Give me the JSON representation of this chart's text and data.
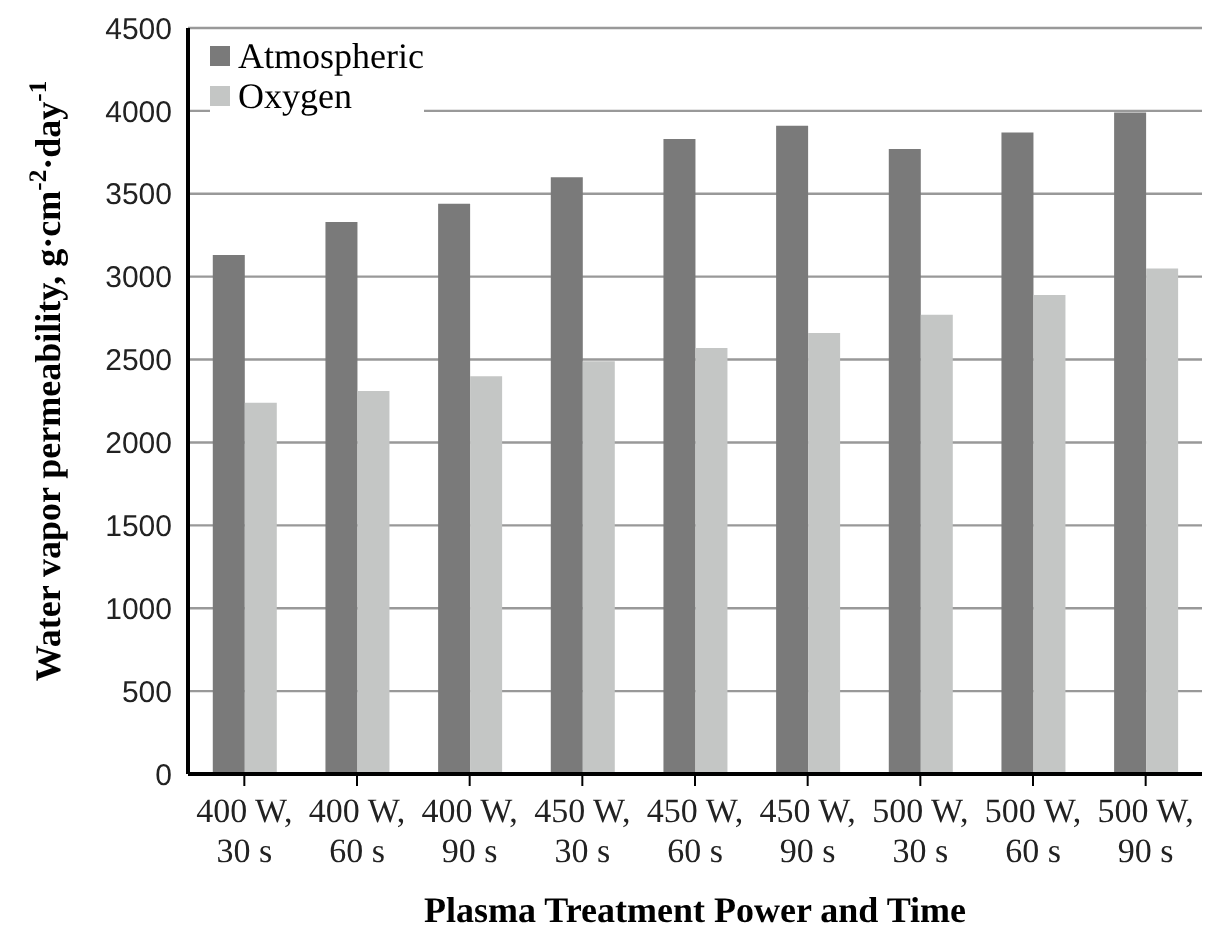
{
  "chart_data": {
    "type": "bar",
    "xlabel": "Plasma Treatment Power and Time",
    "ylabel": "Water vapor permeability, g·cm$^{-2}$·day$^{-1}$",
    "categories": [
      "400 W,\n30 s",
      "400 W,\n60 s",
      "400 W,\n90 s",
      "450 W,\n30 s",
      "450 W,\n60 s",
      "450 W,\n90 s",
      "500 W,\n30 s",
      "500 W,\n60 s",
      "500 W,\n90 s"
    ],
    "series": [
      {
        "name": "Atmospheric",
        "color": "#7a7a7a",
        "values": [
          3130,
          3330,
          3440,
          3600,
          3830,
          3910,
          3770,
          3870,
          3990
        ]
      },
      {
        "name": "Oxygen",
        "color": "#c4c6c5",
        "values": [
          2240,
          2310,
          2400,
          2490,
          2570,
          2660,
          2770,
          2890,
          3050
        ]
      }
    ],
    "ylim": [
      0,
      4500
    ],
    "yticks": [
      0,
      500,
      1000,
      1500,
      2000,
      2500,
      3000,
      3500,
      4000,
      4500
    ],
    "grid": "y",
    "legend": "top left"
  }
}
